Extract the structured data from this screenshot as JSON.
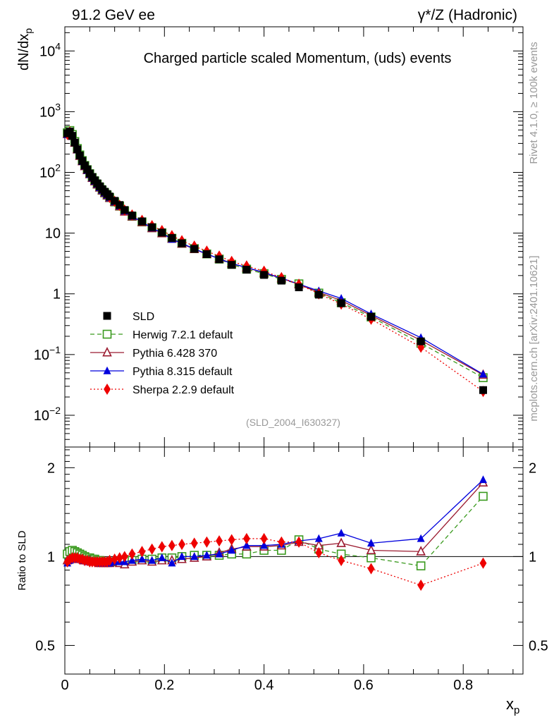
{
  "header": {
    "left": "91.2 GeV ee",
    "right": "γ*/Z (Hadronic)"
  },
  "side": {
    "rivet": "Rivet 4.1.0, ≥ 100k events",
    "mcplots": "mcplots.cern.ch [arXiv:2401.10621]"
  },
  "colors": {
    "SLD": "#000000",
    "Herwig": "#3a9a1e",
    "Pythia6": "#9b1b30",
    "Pythia8": "#0000dd",
    "Sherpa": "#ee0000",
    "watermark": "#999999"
  },
  "chart_data": {
    "type": "line",
    "title": "Charged particle scaled Momentum, (uds) events",
    "analysis_id": "(SLD_2004_I630327)",
    "xlabel": "x",
    "xlabel_sub": "p",
    "ylabel": "dN/dx",
    "ylabel_sub": "p",
    "ratio_ylabel": "Ratio to SLD",
    "xlim": [
      0,
      0.92
    ],
    "ylim": [
      0.003,
      25000
    ],
    "yscale": "log",
    "ratio_ylim": [
      0.4,
      2.35
    ],
    "ratio_yscale": "log",
    "x_ticks": [
      "0",
      "0.2",
      "0.4",
      "0.6",
      "0.8"
    ],
    "y_tick_labels": [
      "10^4",
      "10^3",
      "10^2",
      "10",
      "1",
      "10^-1",
      "10^-2"
    ],
    "ratio_tick_labels": [
      "2",
      "1",
      "0.5"
    ],
    "legend_position": "bottom-left",
    "x": [
      0.005,
      0.01,
      0.015,
      0.02,
      0.025,
      0.03,
      0.035,
      0.04,
      0.045,
      0.05,
      0.055,
      0.06,
      0.065,
      0.07,
      0.075,
      0.08,
      0.085,
      0.09,
      0.1,
      0.11,
      0.12,
      0.135,
      0.155,
      0.175,
      0.195,
      0.215,
      0.235,
      0.26,
      0.285,
      0.31,
      0.335,
      0.365,
      0.4,
      0.435,
      0.47,
      0.51,
      0.555,
      0.615,
      0.715,
      0.84
    ],
    "sld_values": [
      440,
      470,
      400,
      310,
      240,
      190,
      155,
      130,
      112,
      96,
      84,
      74,
      66,
      59,
      53,
      48,
      44,
      40,
      34,
      29,
      24,
      19.5,
      15.6,
      12.5,
      10.2,
      8.3,
      6.8,
      5.5,
      4.5,
      3.7,
      3.0,
      2.5,
      2.05,
      1.65,
      1.28,
      0.97,
      0.7,
      0.42,
      0.165,
      0.026
    ],
    "series": [
      {
        "name": "SLD",
        "marker": "square",
        "line": "none",
        "ratio": [
          1,
          1,
          1,
          1,
          1,
          1,
          1,
          1,
          1,
          1,
          1,
          1,
          1,
          1,
          1,
          1,
          1,
          1,
          1,
          1,
          1,
          1,
          1,
          1,
          1,
          1,
          1,
          1,
          1,
          1,
          1,
          1,
          1,
          1,
          1,
          1,
          1,
          1,
          1,
          1
        ]
      },
      {
        "name": "Herwig 7.2.1 default",
        "marker": "open-square",
        "line": "dashed",
        "ratio": [
          1.02,
          1.04,
          1.05,
          1.04,
          1.03,
          1.02,
          1.01,
          1.0,
          0.99,
          0.99,
          0.98,
          0.98,
          0.97,
          0.97,
          0.96,
          0.96,
          0.96,
          0.96,
          0.96,
          0.96,
          0.97,
          0.97,
          0.98,
          0.98,
          0.99,
          0.99,
          1.0,
          1.01,
          1.01,
          1.01,
          1.02,
          1.02,
          1.05,
          1.05,
          1.14,
          1.06,
          1.02,
          0.99,
          0.93,
          1.6
        ]
      },
      {
        "name": "Pythia 6.428 370",
        "marker": "open-triangle",
        "line": "solid",
        "ratio": [
          0.97,
          0.98,
          0.99,
          0.99,
          0.99,
          0.98,
          0.98,
          0.97,
          0.97,
          0.97,
          0.96,
          0.96,
          0.96,
          0.95,
          0.95,
          0.95,
          0.95,
          0.95,
          0.96,
          0.95,
          0.94,
          0.96,
          0.97,
          0.96,
          0.97,
          0.97,
          0.98,
          0.99,
          1.0,
          1.03,
          1.06,
          1.08,
          1.08,
          1.09,
          1.12,
          1.09,
          1.11,
          1.05,
          1.04,
          1.78
        ]
      },
      {
        "name": "Pythia 8.315 default",
        "marker": "triangle",
        "line": "solid",
        "ratio": [
          0.95,
          0.97,
          0.98,
          0.99,
          0.98,
          0.98,
          0.97,
          0.97,
          0.96,
          0.96,
          0.96,
          0.96,
          0.96,
          0.95,
          0.95,
          0.95,
          0.95,
          0.95,
          0.96,
          0.96,
          0.96,
          0.97,
          0.98,
          0.97,
          0.99,
          0.95,
          1.0,
          1.0,
          1.01,
          1.02,
          1.05,
          1.09,
          1.09,
          1.1,
          1.13,
          1.15,
          1.2,
          1.11,
          1.15,
          1.82
        ]
      },
      {
        "name": "Sherpa 2.2.9 default",
        "marker": "diamond",
        "line": "dotted",
        "ratio": [
          0.96,
          0.98,
          0.99,
          0.99,
          0.99,
          0.98,
          0.98,
          0.97,
          0.97,
          0.96,
          0.96,
          0.96,
          0.96,
          0.96,
          0.96,
          0.96,
          0.96,
          0.97,
          0.98,
          0.99,
          1.0,
          1.02,
          1.04,
          1.06,
          1.08,
          1.09,
          1.1,
          1.11,
          1.12,
          1.13,
          1.14,
          1.15,
          1.15,
          1.12,
          1.12,
          1.03,
          0.97,
          0.91,
          0.8,
          0.95
        ]
      }
    ]
  }
}
